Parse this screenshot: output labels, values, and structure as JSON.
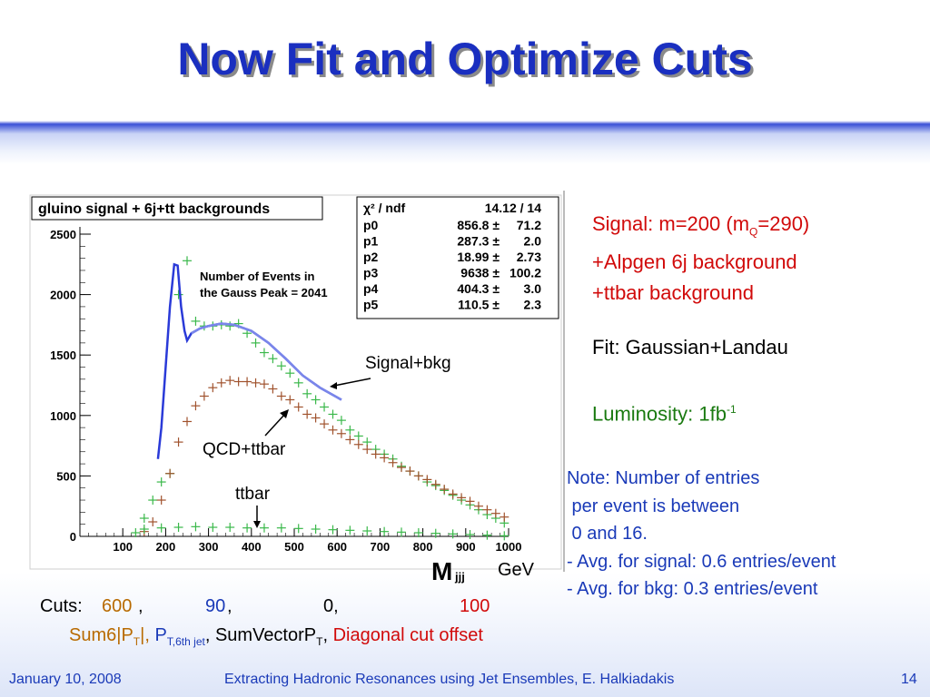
{
  "slide": {
    "title": "Now Fit and Optimize Cuts",
    "footer_date": "January 10, 2008",
    "footer_center": "Extracting Hadronic Resonances using Jet Ensembles, E. Halkiadakis",
    "page_number": "14"
  },
  "right_text": {
    "signal_line1_pre": "Signal: m=200 (m",
    "signal_line1_sub": "Q",
    "signal_line1_post": "=290)",
    "signal_line2": "+Alpgen 6j background",
    "signal_line3": "+ttbar background",
    "fit": "Fit: Gaussian+Landau",
    "lumi_pre": "Luminosity: 1fb",
    "lumi_sup": "-1",
    "note": "Note: Number of entries\n per event is between\n 0 and 16.\n- Avg. for signal: 0.6 entries/event\n- Avg. for bkg: 0.3 entries/event"
  },
  "cuts": {
    "label": "Cuts: ",
    "v1": "600",
    "v2": "90",
    "v3": "0,",
    "v4": "100",
    "n1_pre": "Sum6|P",
    "n1_sub": "T",
    "n1_post": "|,",
    "n2_pre": "P",
    "n2_sub": "T,6th jet",
    "n3_pre": "SumVectorP",
    "n3_sub": "T",
    "n4": "Diagonal cut offset"
  },
  "chart_data": {
    "type": "scatter",
    "title": "gluino signal + 6j+tt backgrounds",
    "xlabel": "GeV",
    "xlim": [
      0,
      1000
    ],
    "ylim": [
      0,
      2500
    ],
    "x_ticks": [
      "100",
      "200",
      "300",
      "400",
      "500",
      "600",
      "700",
      "800",
      "900",
      "1000"
    ],
    "y_ticks": [
      "0",
      "500",
      "1000",
      "1500",
      "2000",
      "2500"
    ],
    "stats_box": {
      "rows": [
        {
          "name": "p0",
          "value": "856.8",
          "err": "71.2"
        },
        {
          "name": "p1",
          "value": "287.3",
          "err": "2.0"
        },
        {
          "name": "p2",
          "value": "18.99",
          "err": "2.73"
        },
        {
          "name": "p3",
          "value": "9638",
          "err": "100.2"
        },
        {
          "name": "p4",
          "value": "404.3",
          "err": "3.0"
        },
        {
          "name": "p5",
          "value": "110.5",
          "err": "2.3"
        }
      ],
      "header_value": "14.12 / 14"
    },
    "annotation_peak": [
      "Number of Events in",
      "the Gauss Peak = 2041"
    ],
    "labels": {
      "signal": "Signal+bkg",
      "qcd": "QCD+ttbar",
      "ttbar": "ttbar"
    },
    "series": [
      {
        "name": "Signal+bkg",
        "color": "#3ab84a",
        "x": [
          130,
          150,
          170,
          190,
          210,
          230,
          250,
          270,
          290,
          310,
          330,
          350,
          370,
          390,
          410,
          430,
          450,
          470,
          490,
          510,
          530,
          550,
          570,
          590,
          610,
          630,
          650,
          670,
          690,
          710,
          730,
          750,
          770,
          790,
          810,
          830,
          850,
          870,
          890,
          910,
          930,
          950,
          970,
          990
        ],
        "y": [
          30,
          150,
          300,
          450,
          520,
          2000,
          2280,
          1780,
          1740,
          1740,
          1750,
          1740,
          1760,
          1680,
          1600,
          1520,
          1470,
          1410,
          1350,
          1270,
          1180,
          1130,
          1070,
          1010,
          960,
          880,
          830,
          780,
          720,
          680,
          640,
          580,
          540,
          500,
          450,
          420,
          380,
          340,
          300,
          260,
          220,
          180,
          150,
          110
        ]
      },
      {
        "name": "QCD+ttbar",
        "color": "#a0522d",
        "x": [
          150,
          170,
          190,
          210,
          230,
          250,
          270,
          290,
          310,
          330,
          350,
          370,
          390,
          410,
          430,
          450,
          470,
          490,
          510,
          530,
          550,
          570,
          590,
          610,
          630,
          650,
          670,
          690,
          710,
          730,
          750,
          770,
          790,
          810,
          830,
          850,
          870,
          890,
          910,
          930,
          950,
          970,
          990
        ],
        "y": [
          40,
          120,
          300,
          520,
          780,
          950,
          1080,
          1160,
          1230,
          1270,
          1290,
          1280,
          1280,
          1270,
          1260,
          1220,
          1160,
          1130,
          1070,
          1010,
          980,
          930,
          880,
          850,
          800,
          760,
          720,
          680,
          650,
          610,
          570,
          540,
          500,
          470,
          430,
          390,
          350,
          320,
          290,
          250,
          220,
          190,
          160
        ]
      },
      {
        "name": "ttbar",
        "color": "#3ab84a",
        "x": [
          150,
          190,
          230,
          270,
          310,
          350,
          390,
          430,
          470,
          510,
          550,
          590,
          630,
          670,
          710,
          750,
          790,
          830,
          870,
          910,
          950,
          990
        ],
        "y": [
          60,
          70,
          75,
          80,
          75,
          75,
          70,
          70,
          70,
          65,
          60,
          55,
          50,
          45,
          40,
          35,
          30,
          25,
          20,
          15,
          10,
          5
        ]
      }
    ],
    "fit_curve": {
      "x": [
        182,
        190,
        200,
        210,
        220,
        228,
        236,
        244,
        250,
        260,
        280,
        300,
        330,
        360,
        400,
        440,
        480,
        520,
        560,
        600,
        610
      ],
      "y": [
        640,
        900,
        1400,
        1900,
        2250,
        2240,
        1900,
        1700,
        1620,
        1680,
        1720,
        1740,
        1760,
        1750,
        1700,
        1600,
        1470,
        1330,
        1230,
        1150,
        1130
      ]
    }
  }
}
